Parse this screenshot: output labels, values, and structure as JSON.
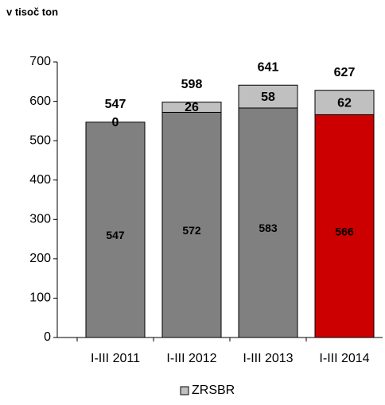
{
  "chart_data": {
    "type": "stacked-bar",
    "title": "v tisoč ton",
    "categories": [
      "I-III 2011",
      "I-III 2012",
      "I-III 2013",
      "I-III 2014"
    ],
    "series": [
      {
        "colors": [
          "#808080",
          "#808080",
          "#808080",
          "#cc0000"
        ],
        "values": [
          547,
          572,
          583,
          566
        ]
      },
      {
        "name": "ZRSBR",
        "color": "#c0c0c0",
        "values": [
          0,
          26,
          58,
          62
        ]
      }
    ],
    "totals": [
      547,
      598,
      641,
      627
    ],
    "ylim": [
      0,
      700
    ],
    "yticks": [
      0,
      100,
      200,
      300,
      400,
      500,
      600,
      700
    ]
  }
}
